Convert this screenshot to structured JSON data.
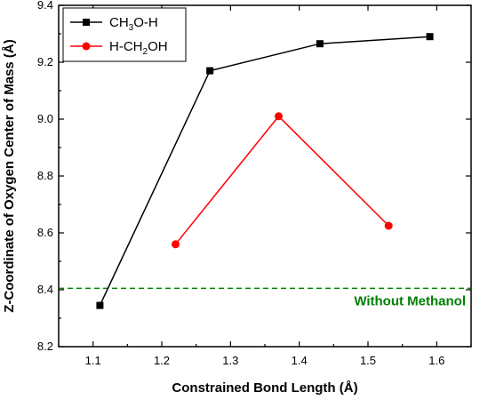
{
  "chart_data": {
    "type": "line",
    "title": "",
    "xlabel": "Constrained Bond Length (Å)",
    "ylabel": "Z-Coordinate of Oxygen Center of Mass (Å)",
    "xlim": [
      1.05,
      1.65
    ],
    "ylim": [
      8.2,
      9.4
    ],
    "xticks": [
      "1.1",
      "1.2",
      "1.3",
      "1.4",
      "1.5",
      "1.6"
    ],
    "yticks": [
      "8.2",
      "8.4",
      "8.6",
      "8.8",
      "9.0",
      "9.2",
      "9.4"
    ],
    "grid": false,
    "legend_position": "top-left",
    "series": [
      {
        "name": "CH3O-H",
        "name_parts": {
          "pre": "CH",
          "sub": "3",
          "post": "O-H"
        },
        "color": "#000000",
        "marker": "square",
        "x": [
          1.11,
          1.27,
          1.43,
          1.59
        ],
        "y": [
          8.345,
          9.17,
          9.265,
          9.29
        ]
      },
      {
        "name": "H-CH2OH",
        "name_parts": {
          "pre": "H-CH",
          "sub": "2",
          "post": "OH"
        },
        "color": "#ff0000",
        "marker": "circle",
        "x": [
          1.22,
          1.37,
          1.53
        ],
        "y": [
          8.56,
          9.01,
          8.625
        ]
      }
    ],
    "reference_line": {
      "label": "Without Methanol",
      "y": 8.405,
      "color": "#008000",
      "style": "dashed"
    }
  }
}
